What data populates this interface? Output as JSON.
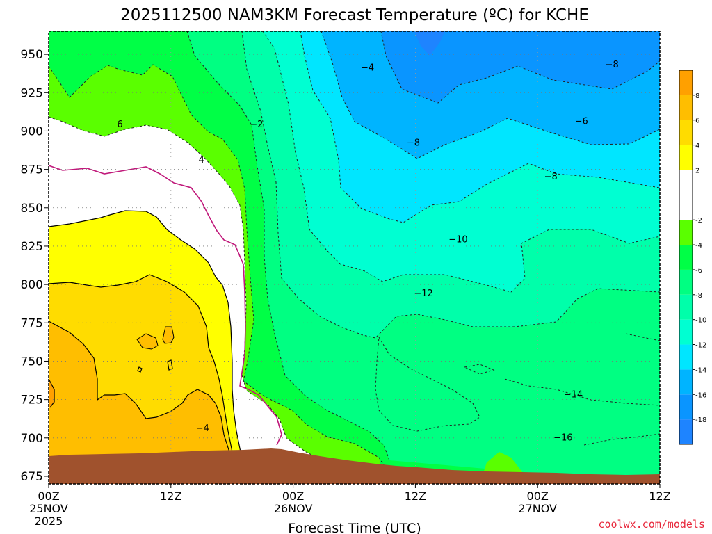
{
  "chart_data": {
    "type": "heatmap",
    "title": "2025112500 NAM3KM Forecast Temperature (ºC) for KCHE",
    "xlabel": "Forecast Time (UTC)",
    "ylabel": "",
    "credit": "coolwx.com/models",
    "y_axis": {
      "unit": "hPa",
      "range": [
        965,
        670
      ],
      "ticks": [
        675,
        700,
        725,
        750,
        775,
        800,
        825,
        850,
        875,
        900,
        925,
        950
      ],
      "tick_labels": [
        "675",
        "700",
        "725",
        "750",
        "775",
        "800",
        "825",
        "850",
        "875",
        "900",
        "925",
        "950"
      ]
    },
    "x_axis": {
      "unit": "forecast hours",
      "range": [
        0,
        60
      ],
      "ticks": [
        {
          "hour": 0,
          "label": "00Z",
          "day": "25NOV",
          "year": "2025"
        },
        {
          "hour": 12,
          "label": "12Z",
          "day": "",
          "year": ""
        },
        {
          "hour": 24,
          "label": "00Z",
          "day": "26NOV",
          "year": ""
        },
        {
          "hour": 36,
          "label": "12Z",
          "day": "",
          "year": ""
        },
        {
          "hour": 48,
          "label": "00Z",
          "day": "27NOV",
          "year": ""
        },
        {
          "hour": 60,
          "label": "12Z",
          "day": "",
          "year": ""
        }
      ]
    },
    "colorbar": {
      "bins": [
        {
          "lo": -20,
          "hi": -18,
          "color": "#1e84ff"
        },
        {
          "lo": -18,
          "hi": -16,
          "color": "#0a95ff"
        },
        {
          "lo": -16,
          "hi": -14,
          "color": "#00b4ff"
        },
        {
          "lo": -14,
          "hi": -12,
          "color": "#00e6ff"
        },
        {
          "lo": -12,
          "hi": -10,
          "color": "#00ffd2"
        },
        {
          "lo": -10,
          "hi": -8,
          "color": "#00ffaa"
        },
        {
          "lo": -8,
          "hi": -6,
          "color": "#00ff82"
        },
        {
          "lo": -6,
          "hi": -4,
          "color": "#00ff46"
        },
        {
          "lo": -4,
          "hi": -2,
          "color": "#5aff00"
        },
        {
          "lo": -2,
          "hi": 2,
          "color": "#ffffff"
        },
        {
          "lo": 2,
          "hi": 4,
          "color": "#ffff00"
        },
        {
          "lo": 4,
          "hi": 6,
          "color": "#ffdc00"
        },
        {
          "lo": 6,
          "hi": 8,
          "color": "#ffbe00"
        },
        {
          "lo": 8,
          "hi": 10,
          "color": "#ffa000"
        }
      ],
      "labels": [
        "8",
        "6",
        "4",
        "2",
        "-2",
        "-4",
        "-6",
        "-8",
        "-10",
        "-12",
        "-14",
        "-16",
        "-18"
      ]
    },
    "contour_labels": [
      {
        "text": "-16",
        "hour": 50.5,
        "hPa": 700
      },
      {
        "text": "-14",
        "hour": 51.5,
        "hPa": 728
      },
      {
        "text": "-12",
        "hour": 36.8,
        "hPa": 794
      },
      {
        "text": "-10",
        "hour": 40.2,
        "hPa": 829
      },
      {
        "text": "-8",
        "hour": 49.3,
        "hPa": 870
      },
      {
        "text": "-8",
        "hour": 35.8,
        "hPa": 892
      },
      {
        "text": "-6",
        "hour": 52.3,
        "hPa": 906
      },
      {
        "text": "-8",
        "hour": 55.3,
        "hPa": 943
      },
      {
        "text": "-4",
        "hour": 31.3,
        "hPa": 941
      },
      {
        "text": "-4",
        "hour": 15.1,
        "hPa": 706
      },
      {
        "text": "4",
        "hour": 15,
        "hPa": 881
      },
      {
        "text": "6",
        "hour": 7,
        "hPa": 904
      },
      {
        "text": "-2",
        "hour": 20.4,
        "hPa": 904
      }
    ],
    "colors": {
      "terrain": "#a0522d",
      "credit": "#e8283c",
      "freezing_line": "#c0187a"
    }
  }
}
